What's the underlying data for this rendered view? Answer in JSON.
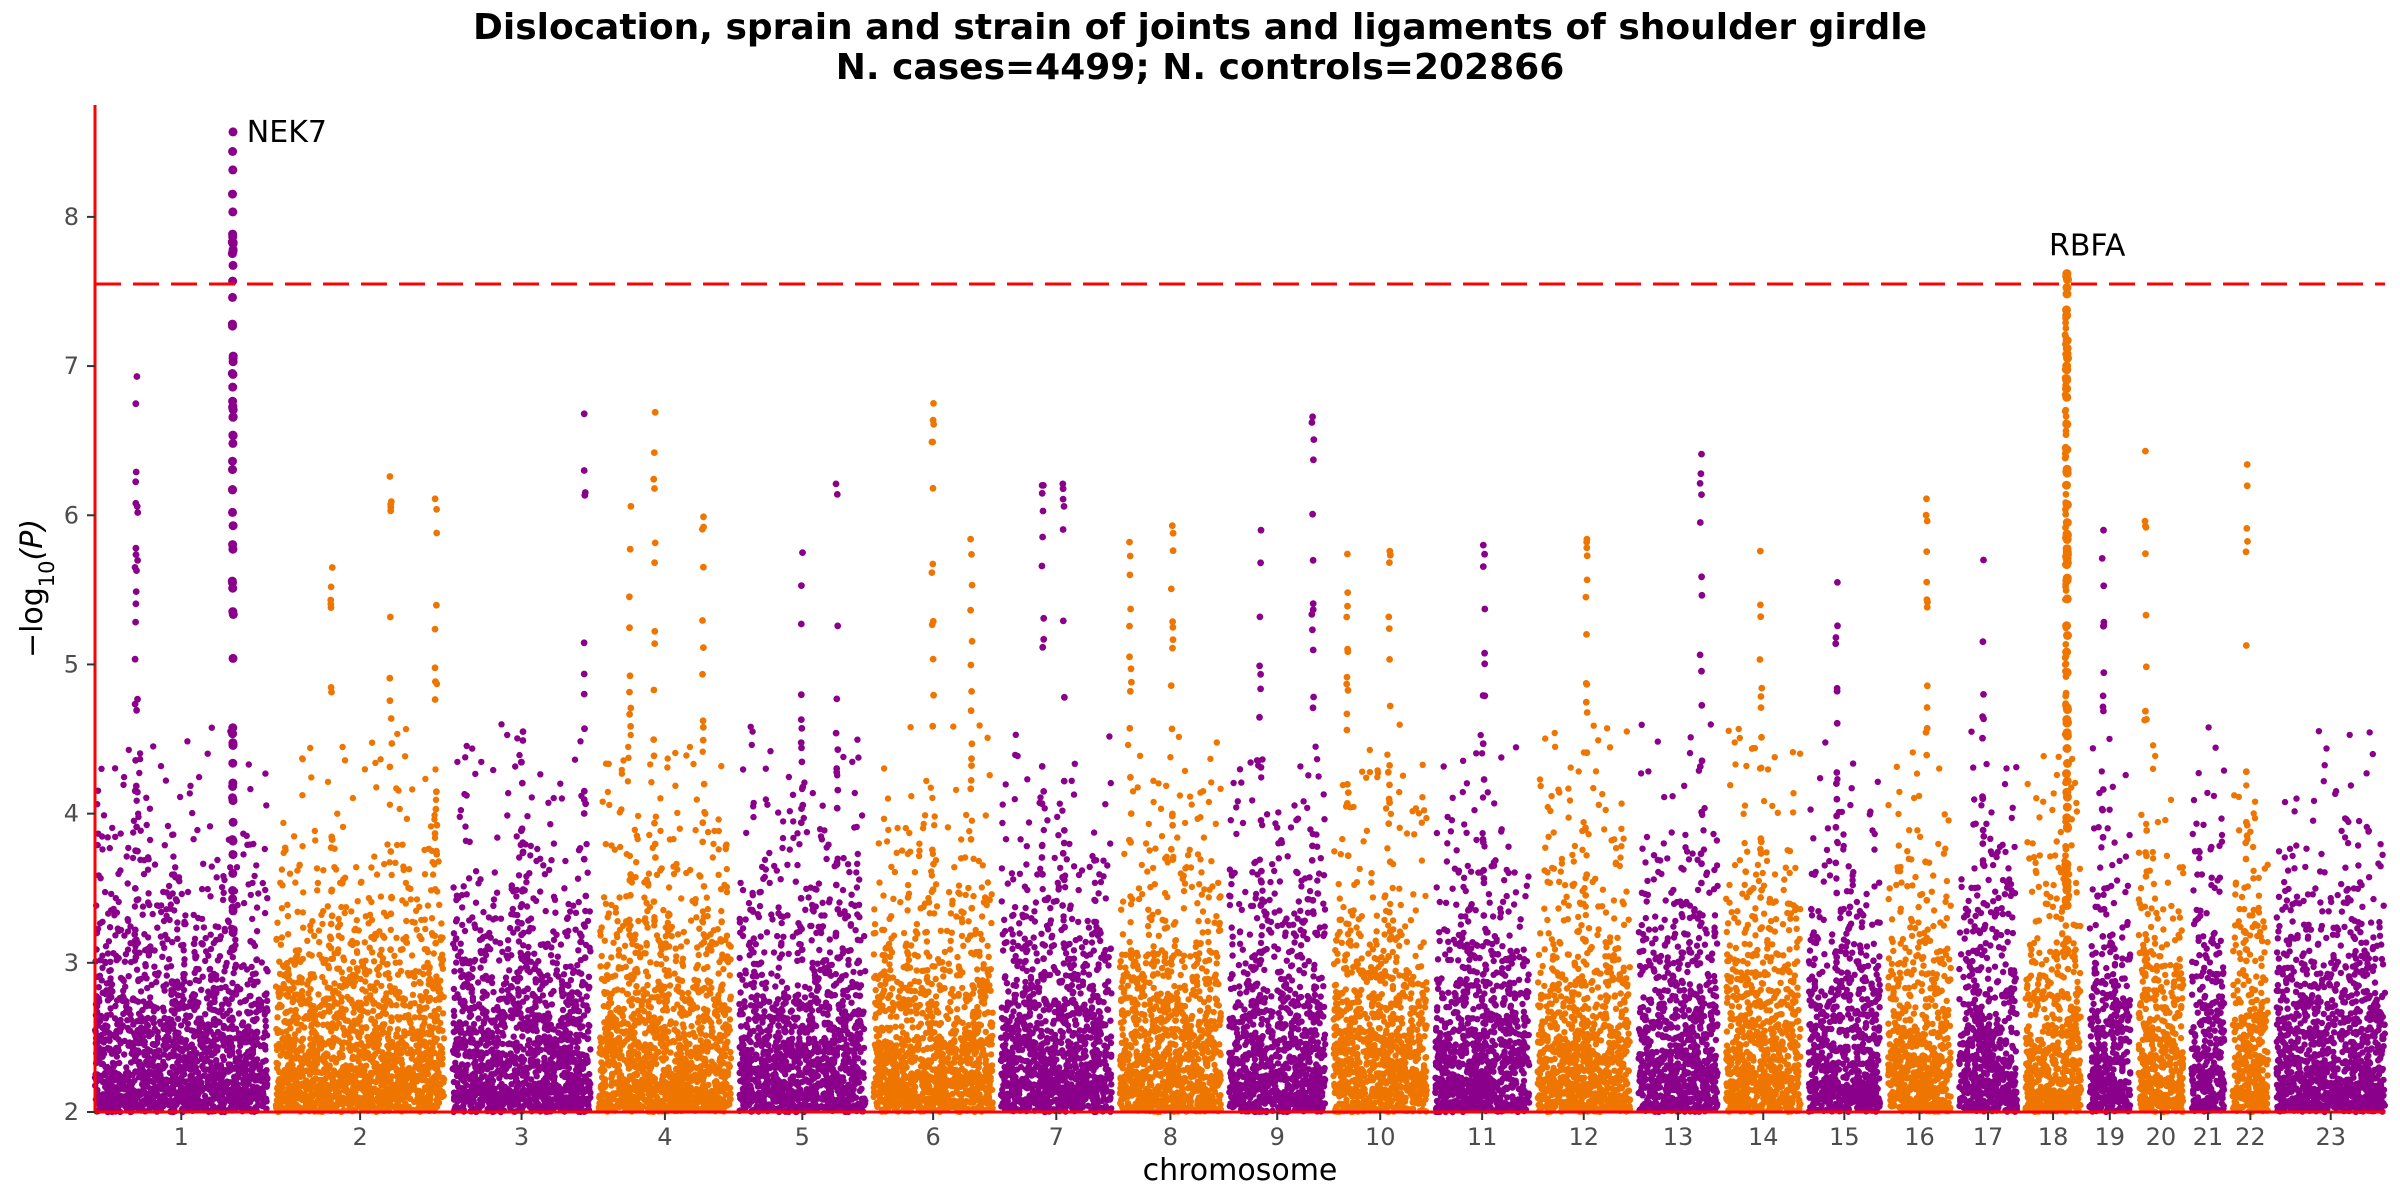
{
  "chart_data": {
    "type": "scatter",
    "title": "Dislocation, sprain and strain of joints and ligaments of shoulder girdle",
    "subtitle": "N. cases=4499; N. controls=202866",
    "xlabel": "chromosome",
    "ylabel_prefix": "−log",
    "ylabel_sub": "10",
    "ylabel_suffix": "(P)",
    "ylim": [
      2,
      8.75
    ],
    "yticks": [
      2,
      3,
      4,
      5,
      6,
      7,
      8
    ],
    "significance_threshold": 7.55,
    "grid": false,
    "colors": {
      "odd": "#8B008B",
      "even": "#EE7600",
      "threshold": "#FF0000",
      "axis": "#FF0000"
    },
    "chromosomes": [
      {
        "label": "1",
        "start": 0,
        "end": 248
      },
      {
        "label": "2",
        "start": 260,
        "end": 502
      },
      {
        "label": "3",
        "start": 514,
        "end": 712
      },
      {
        "label": "4",
        "start": 724,
        "end": 914
      },
      {
        "label": "5",
        "start": 926,
        "end": 1107
      },
      {
        "label": "6",
        "start": 1119,
        "end": 1290
      },
      {
        "label": "7",
        "start": 1302,
        "end": 1461
      },
      {
        "label": "8",
        "start": 1473,
        "end": 1618
      },
      {
        "label": "9",
        "start": 1630,
        "end": 1768
      },
      {
        "label": "10",
        "start": 1780,
        "end": 1914
      },
      {
        "label": "11",
        "start": 1926,
        "end": 2061
      },
      {
        "label": "12",
        "start": 2073,
        "end": 2206
      },
      {
        "label": "13",
        "start": 2218,
        "end": 2332
      },
      {
        "label": "14",
        "start": 2344,
        "end": 2451
      },
      {
        "label": "15",
        "start": 2463,
        "end": 2565
      },
      {
        "label": "16",
        "start": 2577,
        "end": 2667
      },
      {
        "label": "17",
        "start": 2679,
        "end": 2762
      },
      {
        "label": "18",
        "start": 2774,
        "end": 2854
      },
      {
        "label": "19",
        "start": 2866,
        "end": 2925
      },
      {
        "label": "20",
        "start": 2937,
        "end": 3001
      },
      {
        "label": "21",
        "start": 3013,
        "end": 3060
      },
      {
        "label": "22",
        "start": 3072,
        "end": 3123
      },
      {
        "label": "23",
        "start": 3135,
        "end": 3291
      }
    ],
    "peaks": [
      {
        "chrom": "1",
        "pos": 198,
        "maxP": 8.57,
        "label": "NEK7"
      },
      {
        "chrom": "1",
        "pos": 60,
        "maxP": 6.93
      },
      {
        "chrom": "1",
        "pos": 58,
        "maxP": 6.29
      },
      {
        "chrom": "2",
        "pos": 165,
        "maxP": 6.26
      },
      {
        "chrom": "2",
        "pos": 230,
        "maxP": 6.11
      },
      {
        "chrom": "2",
        "pos": 80,
        "maxP": 5.65
      },
      {
        "chrom": "3",
        "pos": 190,
        "maxP": 6.68
      },
      {
        "chrom": "3",
        "pos": 100,
        "maxP": 4.55
      },
      {
        "chrom": "4",
        "pos": 45,
        "maxP": 6.06
      },
      {
        "chrom": "4",
        "pos": 80,
        "maxP": 6.69
      },
      {
        "chrom": "4",
        "pos": 150,
        "maxP": 5.99
      },
      {
        "chrom": "5",
        "pos": 90,
        "maxP": 5.75
      },
      {
        "chrom": "5",
        "pos": 140,
        "maxP": 6.21
      },
      {
        "chrom": "6",
        "pos": 85,
        "maxP": 6.75
      },
      {
        "chrom": "6",
        "pos": 140,
        "maxP": 5.84
      },
      {
        "chrom": "7",
        "pos": 60,
        "maxP": 6.2
      },
      {
        "chrom": "7",
        "pos": 90,
        "maxP": 6.21
      },
      {
        "chrom": "8",
        "pos": 15,
        "maxP": 5.82
      },
      {
        "chrom": "8",
        "pos": 75,
        "maxP": 5.93
      },
      {
        "chrom": "9",
        "pos": 45,
        "maxP": 5.9
      },
      {
        "chrom": "9",
        "pos": 120,
        "maxP": 6.66
      },
      {
        "chrom": "10",
        "pos": 20,
        "maxP": 5.74
      },
      {
        "chrom": "10",
        "pos": 80,
        "maxP": 5.76
      },
      {
        "chrom": "11",
        "pos": 70,
        "maxP": 5.8
      },
      {
        "chrom": "12",
        "pos": 70,
        "maxP": 5.84
      },
      {
        "chrom": "13",
        "pos": 90,
        "maxP": 6.41
      },
      {
        "chrom": "14",
        "pos": 50,
        "maxP": 5.76
      },
      {
        "chrom": "15",
        "pos": 40,
        "maxP": 5.55
      },
      {
        "chrom": "16",
        "pos": 55,
        "maxP": 6.11
      },
      {
        "chrom": "17",
        "pos": 35,
        "maxP": 5.7
      },
      {
        "chrom": "18",
        "pos": 60,
        "maxP": 7.62,
        "label": "RBFA"
      },
      {
        "chrom": "18",
        "pos": 58,
        "maxP": 7.32
      },
      {
        "chrom": "19",
        "pos": 20,
        "maxP": 5.9
      },
      {
        "chrom": "20",
        "pos": 10,
        "maxP": 6.43
      },
      {
        "chrom": "22",
        "pos": 20,
        "maxP": 6.34
      }
    ]
  }
}
